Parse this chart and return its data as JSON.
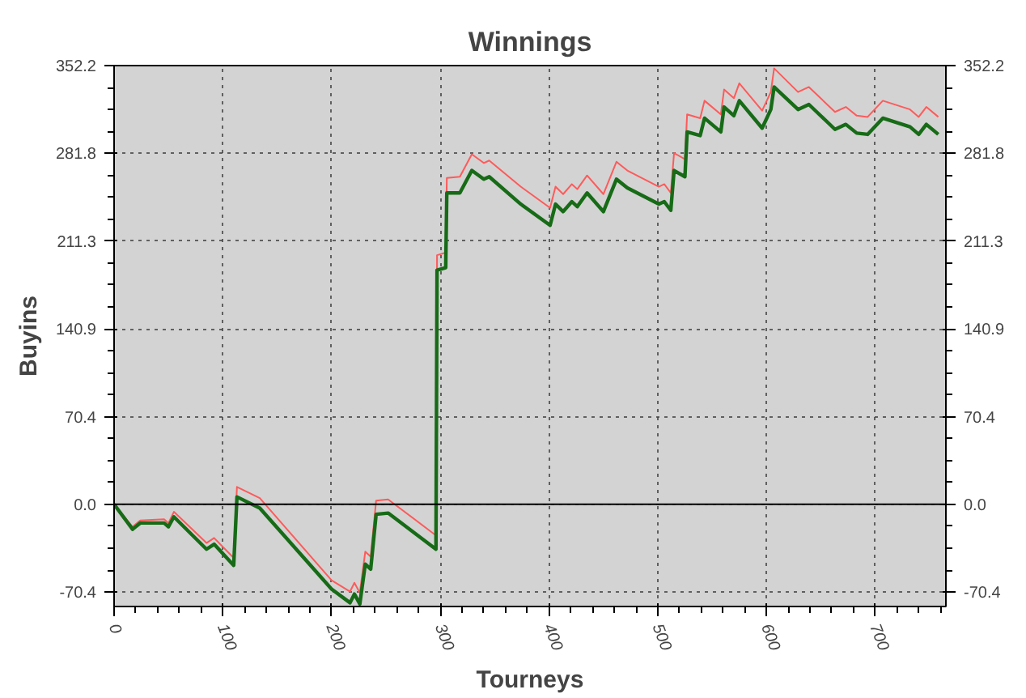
{
  "chart_data": {
    "type": "line",
    "title": "Winnings",
    "xlabel": "Tourneys",
    "ylabel": "Buyins",
    "x": [
      0,
      17,
      24,
      46,
      50,
      55,
      85,
      92,
      110,
      113,
      134,
      200,
      217,
      221,
      226,
      231,
      236,
      241,
      252,
      296,
      297,
      305,
      306,
      318,
      329,
      340,
      345,
      374,
      401,
      406,
      413,
      421,
      426,
      435,
      450,
      462,
      472,
      501,
      506,
      512,
      515,
      525,
      527,
      539,
      543,
      558,
      561,
      570,
      575,
      596,
      604,
      607,
      629,
      639,
      663,
      673,
      683,
      693,
      707,
      732,
      740,
      747,
      758
    ],
    "series": [
      {
        "color": "#ff5a5a",
        "values": [
          0,
          -18,
          -13,
          -12,
          -15,
          -6,
          -31,
          -27,
          -43,
          14,
          5,
          -61,
          -70,
          -63,
          -71,
          -38,
          -42,
          3,
          4,
          -25,
          200,
          202,
          262,
          263,
          281,
          274,
          276,
          255,
          238,
          255,
          249,
          257,
          253,
          264,
          249,
          275,
          268,
          255,
          257,
          250,
          282,
          277,
          313,
          310,
          324,
          313,
          333,
          326,
          338,
          316,
          331,
          350,
          331,
          335,
          315,
          319,
          312,
          311,
          324,
          317,
          311,
          319,
          311
        ]
      },
      {
        "color": "#176b17",
        "values": [
          0,
          -20,
          -15,
          -15,
          -18,
          -10,
          -36,
          -32,
          -49,
          6,
          -3,
          -68,
          -79,
          -72,
          -80,
          -48,
          -52,
          -8,
          -7,
          -36,
          188,
          190,
          250,
          250,
          268,
          261,
          263,
          241,
          224,
          241,
          235,
          243,
          239,
          250,
          235,
          261,
          254,
          241,
          243,
          236,
          268,
          263,
          299,
          296,
          310,
          299,
          319,
          312,
          324,
          302,
          317,
          335,
          317,
          321,
          301,
          305,
          298,
          297,
          310,
          303,
          297,
          305,
          297
        ]
      }
    ],
    "xlim": [
      0,
      765
    ],
    "xticks": [
      0,
      100,
      200,
      300,
      400,
      500,
      600,
      700
    ],
    "ylim": [
      -82,
      352.2
    ],
    "yticks": [
      -70.4,
      {
        "value": 0,
        "label": "0.0"
      },
      70.4,
      140.9,
      211.3,
      281.8,
      352.2
    ],
    "y2lim": [
      -82,
      352.2
    ],
    "y2ticks": [
      -70.4,
      {
        "value": 0,
        "label": "0.0"
      },
      70.4,
      140.9,
      211.3,
      281.8,
      352.2
    ],
    "ref_lines": [
      {
        "axis": "y",
        "value": 0,
        "color": "#000000"
      }
    ],
    "grid": true,
    "line_style": "solid"
  }
}
